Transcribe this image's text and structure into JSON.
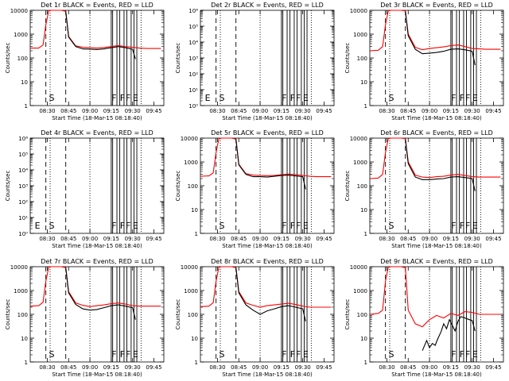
{
  "figure": {
    "xlabel": "Start Time (18-Mar-15 08:18:40)",
    "ylabel": "Counts/sec",
    "xtick_labels": [
      "08:30",
      "08:45",
      "09:00",
      "09:15",
      "09:30",
      "09:45"
    ],
    "event_colour": "#000000",
    "lld_colour": "#ff0000"
  },
  "chart_data": [
    {
      "type": "line",
      "title": "Det 1r BLACK = Events, RED = LLD",
      "xlabel": "Start Time (18-Mar-15 08:18:40)",
      "ylabel": "Counts/sec",
      "y_scale": "log",
      "ylim": [
        1,
        10000
      ],
      "ytick_labels": [
        "1",
        "10",
        "100",
        "1000",
        "10000"
      ],
      "annotations": [
        {
          "text": "S",
          "x": "08:30"
        },
        {
          "text": "F",
          "x": "09:14"
        },
        {
          "text": "F",
          "x": "09:20"
        },
        {
          "text": "F",
          "x": "09:24"
        },
        {
          "text": "E",
          "x": "09:29"
        }
      ],
      "series": [
        {
          "name": "LLD",
          "color": "#ff0000",
          "x": [
            "08:18",
            "08:24",
            "08:27",
            "08:29",
            "08:31",
            "08:33",
            "08:40",
            "08:43",
            "08:45",
            "08:50",
            "08:55",
            "09:00",
            "09:05",
            "09:10",
            "09:15",
            "09:20",
            "09:25",
            "09:30",
            "09:35",
            "09:40",
            "09:45",
            "09:50"
          ],
          "y": [
            260,
            260,
            350,
            2500,
            9500,
            10000,
            10000,
            9000,
            800,
            320,
            280,
            270,
            260,
            275,
            300,
            330,
            300,
            280,
            260,
            250,
            250,
            250
          ]
        },
        {
          "name": "Events",
          "color": "#000000",
          "x": [
            "08:43",
            "08:45",
            "08:50",
            "08:55",
            "09:00",
            "09:05",
            "09:10",
            "09:15",
            "09:20",
            "09:25",
            "09:30",
            "09:32"
          ],
          "y": [
            9000,
            750,
            300,
            240,
            235,
            225,
            240,
            270,
            300,
            270,
            230,
            90
          ]
        }
      ]
    },
    {
      "type": "line",
      "title": "Det 2r BLACK = Events, RED = LLD",
      "xlabel": "Start Time (18-Mar-15 08:18:40)",
      "ylabel": "Counts/sec",
      "y_scale": "log",
      "ylim": [
        1,
        1000000
      ],
      "ytick_labels": [
        "10⁰",
        "10¹",
        "10²",
        "10³",
        "10⁴",
        "10⁵",
        "10⁶"
      ],
      "annotations": [
        {
          "text": "E",
          "x": "08:20"
        },
        {
          "text": "S",
          "x": "08:30"
        },
        {
          "text": "F",
          "x": "09:14"
        },
        {
          "text": "F",
          "x": "09:20"
        },
        {
          "text": "F",
          "x": "09:24"
        },
        {
          "text": "E",
          "x": "09:29"
        }
      ],
      "series": []
    },
    {
      "type": "line",
      "title": "Det 3r BLACK = Events, RED = LLD",
      "xlabel": "Start Time (18-Mar-15 08:18:40)",
      "ylabel": "Counts/sec",
      "y_scale": "log",
      "ylim": [
        1,
        10000
      ],
      "ytick_labels": [
        "1",
        "10",
        "100",
        "1000",
        "10000"
      ],
      "annotations": [
        {
          "text": "S",
          "x": "08:30"
        },
        {
          "text": "F",
          "x": "09:14"
        },
        {
          "text": "F",
          "x": "09:20"
        },
        {
          "text": "F",
          "x": "09:24"
        },
        {
          "text": "E",
          "x": "09:29"
        }
      ],
      "series": [
        {
          "name": "LLD",
          "color": "#ff0000",
          "x": [
            "08:18",
            "08:24",
            "08:27",
            "08:29",
            "08:31",
            "08:33",
            "08:40",
            "08:43",
            "08:45",
            "08:50",
            "08:55",
            "09:00",
            "09:05",
            "09:10",
            "09:15",
            "09:20",
            "09:25",
            "09:30",
            "09:35",
            "09:40",
            "09:45",
            "09:50"
          ],
          "y": [
            200,
            210,
            300,
            2500,
            9500,
            10000,
            10000,
            9500,
            1000,
            280,
            220,
            250,
            270,
            290,
            330,
            350,
            300,
            250,
            240,
            230,
            230,
            230
          ]
        },
        {
          "name": "Events",
          "color": "#000000",
          "x": [
            "08:43",
            "08:45",
            "08:50",
            "08:55",
            "09:00",
            "09:05",
            "09:10",
            "09:15",
            "09:20",
            "09:25",
            "09:30",
            "09:32"
          ],
          "y": [
            9000,
            850,
            230,
            150,
            160,
            170,
            190,
            230,
            240,
            220,
            190,
            50
          ]
        }
      ]
    },
    {
      "type": "line",
      "title": "Det 4r BLACK = Events, RED = LLD",
      "xlabel": "Start Time (18-Mar-15 08:18:40)",
      "ylabel": "Counts/sec",
      "y_scale": "log",
      "ylim": [
        1,
        1000000
      ],
      "ytick_labels": [
        "10⁰",
        "10¹",
        "10²",
        "10³",
        "10⁴",
        "10⁵",
        "10⁶"
      ],
      "annotations": [
        {
          "text": "E",
          "x": "08:20"
        },
        {
          "text": "S",
          "x": "08:30"
        },
        {
          "text": "F",
          "x": "09:14"
        },
        {
          "text": "F",
          "x": "09:20"
        },
        {
          "text": "F",
          "x": "09:24"
        },
        {
          "text": "E",
          "x": "09:29"
        }
      ],
      "series": []
    },
    {
      "type": "line",
      "title": "Det 5r BLACK = Events, RED = LLD",
      "xlabel": "Start Time (18-Mar-15 08:18:40)",
      "ylabel": "Counts/sec",
      "y_scale": "log",
      "ylim": [
        1,
        10000
      ],
      "ytick_labels": [
        "1",
        "10",
        "100",
        "1000",
        "10000"
      ],
      "annotations": [
        {
          "text": "S",
          "x": "08:30"
        },
        {
          "text": "F",
          "x": "09:14"
        },
        {
          "text": "F",
          "x": "09:20"
        },
        {
          "text": "F",
          "x": "09:24"
        },
        {
          "text": "E",
          "x": "09:29"
        }
      ],
      "series": [
        {
          "name": "LLD",
          "color": "#ff0000",
          "x": [
            "08:18",
            "08:24",
            "08:27",
            "08:29",
            "08:31",
            "08:33",
            "08:40",
            "08:43",
            "08:45",
            "08:50",
            "08:55",
            "09:00",
            "09:05",
            "09:10",
            "09:15",
            "09:20",
            "09:25",
            "09:30",
            "09:35",
            "09:40",
            "09:45",
            "09:50"
          ],
          "y": [
            250,
            260,
            350,
            2500,
            9500,
            10000,
            10000,
            9000,
            800,
            320,
            280,
            270,
            265,
            270,
            290,
            310,
            290,
            270,
            250,
            240,
            240,
            240
          ]
        },
        {
          "name": "Events",
          "color": "#000000",
          "x": [
            "08:43",
            "08:45",
            "08:50",
            "08:55",
            "09:00",
            "09:05",
            "09:10",
            "09:15",
            "09:20",
            "09:25",
            "09:30",
            "09:32"
          ],
          "y": [
            9000,
            750,
            300,
            240,
            240,
            230,
            250,
            270,
            280,
            260,
            240,
            70
          ]
        }
      ]
    },
    {
      "type": "line",
      "title": "Det 6r BLACK = Events, RED = LLD",
      "xlabel": "Start Time (18-Mar-15 08:18:40)",
      "ylabel": "Counts/sec",
      "y_scale": "log",
      "ylim": [
        1,
        10000
      ],
      "ytick_labels": [
        "1",
        "10",
        "100",
        "1000",
        "10000"
      ],
      "annotations": [
        {
          "text": "S",
          "x": "08:30"
        },
        {
          "text": "F",
          "x": "09:14"
        },
        {
          "text": "F",
          "x": "09:20"
        },
        {
          "text": "F",
          "x": "09:24"
        },
        {
          "text": "E",
          "x": "09:29"
        }
      ],
      "series": [
        {
          "name": "LLD",
          "color": "#ff0000",
          "x": [
            "08:18",
            "08:24",
            "08:27",
            "08:29",
            "08:31",
            "08:33",
            "08:40",
            "08:43",
            "08:45",
            "08:50",
            "08:55",
            "09:00",
            "09:05",
            "09:10",
            "09:15",
            "09:20",
            "09:25",
            "09:30",
            "09:35",
            "09:40",
            "09:45",
            "09:50"
          ],
          "y": [
            200,
            210,
            300,
            2500,
            9500,
            10000,
            10000,
            9500,
            1000,
            280,
            230,
            220,
            240,
            250,
            280,
            300,
            270,
            240,
            230,
            230,
            230,
            230
          ]
        },
        {
          "name": "Events",
          "color": "#000000",
          "x": [
            "08:43",
            "08:45",
            "08:50",
            "08:55",
            "09:00",
            "09:05",
            "09:10",
            "09:15",
            "09:20",
            "09:25",
            "09:30",
            "09:32"
          ],
          "y": [
            9000,
            850,
            230,
            180,
            180,
            190,
            200,
            230,
            240,
            220,
            200,
            60
          ]
        }
      ]
    },
    {
      "type": "line",
      "title": "Det 7r BLACK = Events, RED = LLD",
      "xlabel": "Start Time (18-Mar-15 08:18:40)",
      "ylabel": "Counts/sec",
      "y_scale": "log",
      "ylim": [
        1,
        10000
      ],
      "ytick_labels": [
        "1",
        "10",
        "100",
        "1000",
        "10000"
      ],
      "annotations": [
        {
          "text": "S",
          "x": "08:30"
        },
        {
          "text": "F",
          "x": "09:14"
        },
        {
          "text": "F",
          "x": "09:20"
        },
        {
          "text": "F",
          "x": "09:24"
        },
        {
          "text": "E",
          "x": "09:29"
        }
      ],
      "series": [
        {
          "name": "LLD",
          "color": "#ff0000",
          "x": [
            "08:18",
            "08:24",
            "08:27",
            "08:29",
            "08:31",
            "08:33",
            "08:40",
            "08:43",
            "08:45",
            "08:50",
            "08:55",
            "09:00",
            "09:05",
            "09:10",
            "09:15",
            "09:20",
            "09:25",
            "09:30",
            "09:35",
            "09:40",
            "09:45",
            "09:50"
          ],
          "y": [
            220,
            230,
            320,
            2500,
            9500,
            10000,
            10000,
            9000,
            900,
            300,
            240,
            210,
            230,
            250,
            280,
            300,
            270,
            230,
            220,
            220,
            220,
            220
          ]
        },
        {
          "name": "Events",
          "color": "#000000",
          "x": [
            "08:43",
            "08:45",
            "08:50",
            "08:55",
            "09:00",
            "09:05",
            "09:10",
            "09:15",
            "09:20",
            "09:25",
            "09:30",
            "09:32"
          ],
          "y": [
            9000,
            800,
            260,
            170,
            150,
            160,
            190,
            230,
            250,
            220,
            190,
            60
          ]
        }
      ]
    },
    {
      "type": "line",
      "title": "Det 8r BLACK = Events, RED = LLD",
      "xlabel": "Start Time (18-Mar-15 08:18:40)",
      "ylabel": "Counts/sec",
      "y_scale": "log",
      "ylim": [
        1,
        10000
      ],
      "ytick_labels": [
        "1",
        "10",
        "100",
        "1000",
        "10000"
      ],
      "annotations": [
        {
          "text": "S",
          "x": "08:30"
        },
        {
          "text": "F",
          "x": "09:14"
        },
        {
          "text": "F",
          "x": "09:20"
        },
        {
          "text": "F",
          "x": "09:24"
        },
        {
          "text": "E",
          "x": "09:29"
        }
      ],
      "series": [
        {
          "name": "LLD",
          "color": "#ff0000",
          "x": [
            "08:18",
            "08:24",
            "08:27",
            "08:29",
            "08:31",
            "08:33",
            "08:40",
            "08:43",
            "08:45",
            "08:50",
            "08:55",
            "09:00",
            "09:05",
            "09:10",
            "09:15",
            "09:20",
            "09:25",
            "09:30",
            "09:35",
            "09:40",
            "09:45",
            "09:50"
          ],
          "y": [
            210,
            220,
            310,
            2500,
            9500,
            10000,
            10000,
            9000,
            900,
            300,
            240,
            200,
            230,
            250,
            270,
            290,
            260,
            220,
            200,
            200,
            200,
            200
          ]
        },
        {
          "name": "Events",
          "color": "#000000",
          "x": [
            "08:43",
            "08:45",
            "08:50",
            "08:55",
            "09:00",
            "09:05",
            "09:10",
            "09:15",
            "09:20",
            "09:25",
            "09:30",
            "09:32"
          ],
          "y": [
            9000,
            800,
            250,
            150,
            100,
            140,
            170,
            210,
            230,
            200,
            170,
            50
          ]
        }
      ]
    },
    {
      "type": "line",
      "title": "Det 9r BLACK = Events, RED = LLD",
      "xlabel": "Start Time (18-Mar-15 08:18:40)",
      "ylabel": "Counts/sec",
      "y_scale": "log",
      "ylim": [
        1,
        10000
      ],
      "ytick_labels": [
        "1",
        "10",
        "100",
        "1000",
        "10000"
      ],
      "annotations": [
        {
          "text": "S",
          "x": "08:30"
        },
        {
          "text": "F",
          "x": "09:14"
        },
        {
          "text": "F",
          "x": "09:20"
        },
        {
          "text": "F",
          "x": "09:24"
        },
        {
          "text": "E",
          "x": "09:29"
        }
      ],
      "series": [
        {
          "name": "LLD",
          "color": "#ff0000",
          "x": [
            "08:18",
            "08:24",
            "08:27",
            "08:29",
            "08:31",
            "08:33",
            "08:40",
            "08:43",
            "08:45",
            "08:50",
            "08:55",
            "09:00",
            "09:05",
            "09:10",
            "09:15",
            "09:20",
            "09:25",
            "09:30",
            "09:35",
            "09:40",
            "09:45",
            "09:50"
          ],
          "y": [
            100,
            110,
            150,
            2500,
            9500,
            10000,
            10000,
            9000,
            150,
            40,
            30,
            60,
            90,
            70,
            110,
            90,
            130,
            120,
            100,
            100,
            100,
            100
          ]
        },
        {
          "name": "Events",
          "color": "#000000",
          "x": [
            "08:55",
            "08:58",
            "09:00",
            "09:02",
            "09:04",
            "09:06",
            "09:08",
            "09:10",
            "09:12",
            "09:14",
            "09:16",
            "09:18",
            "09:20",
            "09:22",
            "09:25",
            "09:28",
            "09:30",
            "09:32"
          ],
          "y": [
            3,
            8,
            4,
            6,
            5,
            10,
            18,
            40,
            25,
            60,
            35,
            20,
            50,
            80,
            70,
            60,
            55,
            20
          ]
        }
      ]
    }
  ]
}
